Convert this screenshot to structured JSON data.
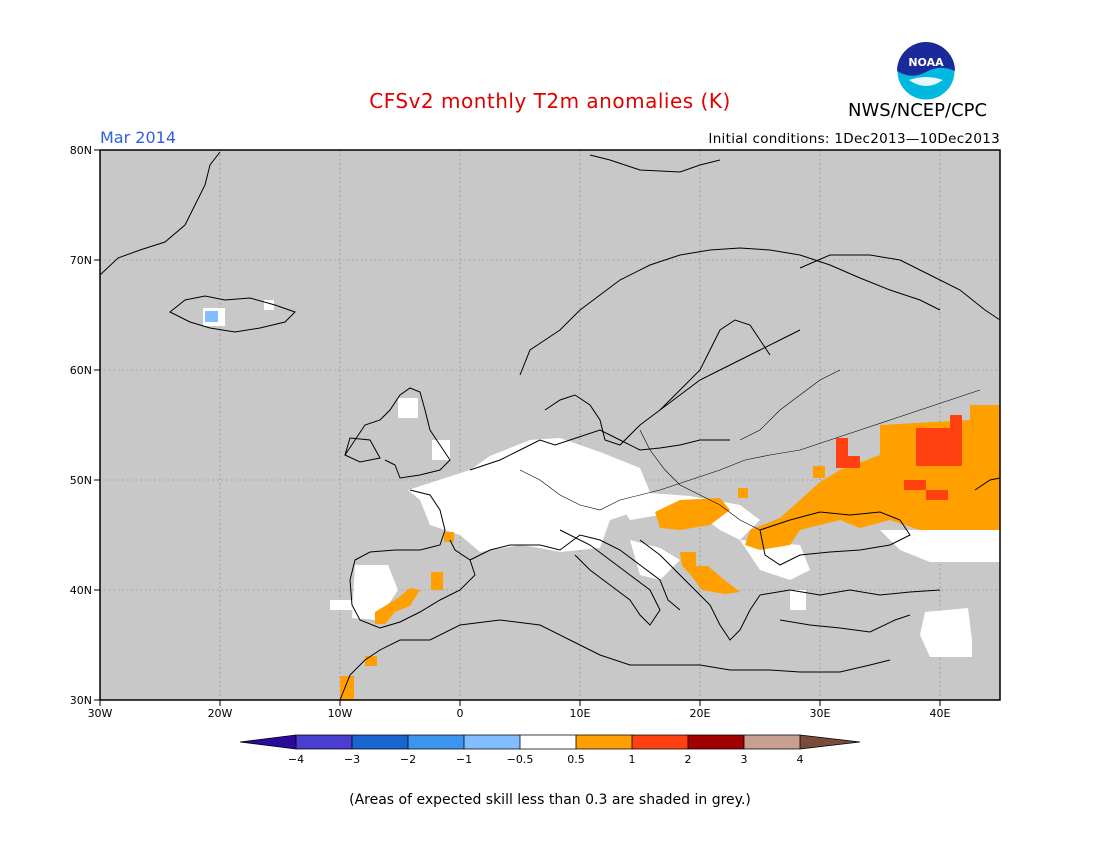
{
  "header": {
    "title": "CFSv2 monthly T2m anomalies (K)",
    "month": "Mar 2014",
    "agency": "NWS/NCEP/CPC",
    "initial_conditions": "Initial conditions: 1Dec2013—10Dec2013",
    "logo_text": "NOAA"
  },
  "map": {
    "lon_range": [
      -30,
      45
    ],
    "lat_range": [
      30,
      80
    ],
    "lat_ticks": [
      "30N",
      "40N",
      "50N",
      "60N",
      "70N",
      "80N"
    ],
    "lon_ticks": [
      "30W",
      "20W",
      "10W",
      "0",
      "10E",
      "20E",
      "30E",
      "40E"
    ],
    "background_color": "#c8c8c8"
  },
  "colorbar": {
    "labels": [
      "−4",
      "−3",
      "−2",
      "−1",
      "−0.5",
      "0.5",
      "1",
      "2",
      "3",
      "4"
    ],
    "colors": [
      "#2a0a9a",
      "#4a3ed0",
      "#1a66d0",
      "#3c96f0",
      "#82beff",
      "#ffffff",
      "#ffa000",
      "#ff4010",
      "#a00000",
      "#c8a090",
      "#7a4a3a"
    ]
  },
  "footnote": "(Areas of expected skill less than 0.3 are shaded in grey.)"
}
